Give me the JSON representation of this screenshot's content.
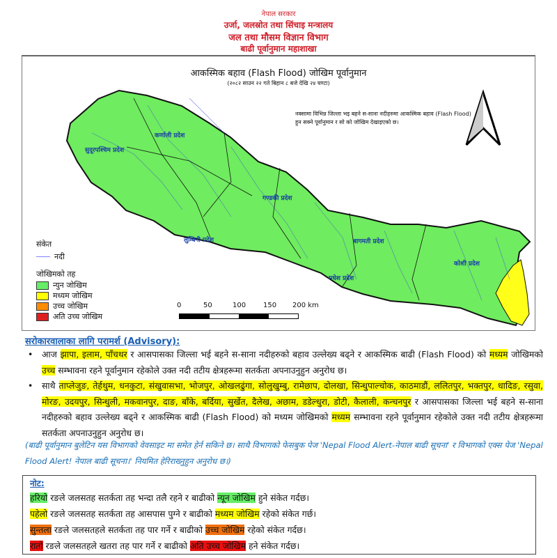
{
  "header": {
    "line1": "नेपाल सरकार",
    "line2": "उर्जा, जलस्रोत तथा सिंचाइ मन्त्रालय",
    "line3": "जल तथा मौसम विज्ञान विभाग",
    "line4": "बाढी पूर्वानुमान महाशाखा",
    "color": "#d0202a"
  },
  "map": {
    "title": "आकस्मिक बहाव (Flash Flood) जोखिम पूर्वानुमान",
    "subtitle": "(२०८२ साउन २२ गते बिहान ८ बजे देखि २४ घण्टा)",
    "note": "नक्सामा विभिन्न जिल्ला भइ बहने स-साना नदीहरुमा आकस्मिक बहाव (Flash Flood) हुन सक्ने पूर्वानुमान र सो को जोखिम देखाइएको छ।",
    "north_arrow": "north-arrow-icon",
    "provinces": [
      "सुदूरपश्चिम प्रदेश",
      "कर्णाली प्रदेश",
      "गण्डकी प्रदेश",
      "लुम्बिनी प्रदेश",
      "बागमती प्रदेश",
      "मधेश प्रदेश",
      "कोशी प्रदेश"
    ],
    "legend": {
      "title": "संकेत",
      "river": "नदी",
      "risk_title": "जोखिमको तह",
      "items": [
        {
          "label": "न्युन जोखिम",
          "color": "#66ee66"
        },
        {
          "label": "मध्यम जोखिम",
          "color": "#ffff00"
        },
        {
          "label": "उच्च जोखिम",
          "color": "#ff8c00"
        },
        {
          "label": "अति उच्च जोखिम",
          "color": "#e02020"
        }
      ]
    },
    "scale": {
      "ticks": [
        "0",
        "50",
        "100",
        "150",
        "200 km"
      ]
    }
  },
  "advisory": {
    "heading": "सरोकारवालाका लागि परामर्श (Advisory):",
    "bullets": [
      [
        {
          "t": "आज "
        },
        {
          "t": "झापा, इलाम, पाँचथर",
          "hl": true
        },
        {
          "t": " र आसपासका जिल्ला भई बहने स-साना नदीहरुको बहाव उल्लेख्य बढ्ने र आकस्मिक बाढी (Flash Flood) को "
        },
        {
          "t": "मध्यम",
          "hl": true
        },
        {
          "t": " जोखिमको "
        },
        {
          "t": "उच्च",
          "hl": true
        },
        {
          "t": " सम्भावना रहने पूर्वानुमान रहेकोले उक्त नदी तटीय क्षेत्रहरूमा सतर्कता अपनाउनुहुन अनुरोध छ।"
        }
      ],
      [
        {
          "t": "साथै "
        },
        {
          "t": "ताप्लेजुङ, तेर्हथुम, धनकुटा, संखुवासभा, भोजपुर, ओखलढुंगा, सोलुखुम्बु, रामेछाप, दोलखा, सिन्धुपाल्चोक, काठमाडौं, ललितपुर, भक्तपुर, धादिङ, रसुवा, मोरङ, उदयपुर, सिन्धुली, मकवानपुर, दाङ, बाँके, बर्दिया, सुर्खेत, दैलेख, अछाम, डडेल्धुरा, डोटी, कैलाली, कन्चनपुर",
          "hl": true
        },
        {
          "t": " र आसपासका जिल्ला भई बहने स-साना नदीहरुको बहाव उल्लेख्य बढ्ने र आकस्मिक बाढी (Flash Flood) को मध्यम जोखिमको "
        },
        {
          "t": "मध्यम",
          "hl": true
        },
        {
          "t": " सम्भावना रहने पूर्वानुमान रहेकोले उक्त नदी तटीय क्षेत्रहरूमा सतर्कता अपनाउनुहुन अनुरोध छ।"
        }
      ]
    ],
    "info": "(बाढी पूर्वानुमान बुलेटिन यस विभागको वेवसाइट मा समेत हेर्न सकिने छ। साथै विभागको फेसबुक पेज 'Nepal Flood Alert-नेपाल बाढी सूचना' र विभागको एक्स पेज 'Nepal Flood Alert! नेपाल बाढी सूचना।' नियमित हेरिराख्नुहुन अनुरोध छ।)"
  },
  "note": {
    "title": "नोट:",
    "lines": [
      [
        {
          "t": "हरियो",
          "c": "#66ee66"
        },
        {
          "t": " रङले जलसतह सतर्कता तह भन्दा तलै रहने र बाढीको "
        },
        {
          "t": "न्यून जोखिम",
          "c": "#66ee66"
        },
        {
          "t": " हुने संकेत गर्दछ।"
        }
      ],
      [
        {
          "t": "पहेलो",
          "c": "#ffff00"
        },
        {
          "t": " रङले जलसतह सतर्कता तह आसपास पुग्ने र बाढीको "
        },
        {
          "t": "मध्यम जोखिम",
          "c": "#ffff00"
        },
        {
          "t": "  रहेको संकेत गर्छ।"
        }
      ],
      [
        {
          "t": "सुन्तला",
          "c": "#f07010"
        },
        {
          "t": " रङले जलसतहले सतर्कता तह पार गर्ने र बाढीको "
        },
        {
          "t": "उच्च जोखिम",
          "c": "#f07010"
        },
        {
          "t": " रहेको संकेत गर्दछ।"
        }
      ],
      [
        {
          "t": "रातो",
          "c": "#e81010"
        },
        {
          "t": " रङले जलसतहले खतरा तह पार गर्ने र बाढीको "
        },
        {
          "t": "अति उच्च जोखिम",
          "c": "#e81010"
        },
        {
          "t": " हने संकेत गर्दछ।"
        }
      ]
    ]
  }
}
